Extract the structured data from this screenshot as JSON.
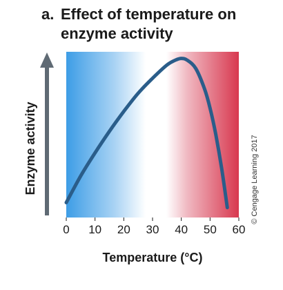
{
  "figure": {
    "label": "a.",
    "title_line1": "Effect of temperature on",
    "title_line2": "enzyme activity",
    "credit": "© Cengage Learning 2017"
  },
  "colors": {
    "cold": "#3d9de6",
    "neutral": "#ffffff",
    "hot": "#d8384f",
    "curve": "#2a5d8a",
    "arrow": "#5f6a74"
  },
  "chart_data": {
    "type": "line",
    "title": "Effect of temperature on enzyme activity",
    "xlabel": "Temperature (°C)",
    "ylabel": "Enzyme activity",
    "xlim": [
      0,
      60
    ],
    "ylim": [
      0,
      1
    ],
    "x_ticks": [
      0,
      10,
      20,
      30,
      40,
      50,
      60
    ],
    "y_ticks": [],
    "grid": false,
    "legend": "none",
    "y_axis_arrow": "up",
    "background": "temperature gradient: blue (cold) to white to red (hot)",
    "series": [
      {
        "x": [
          0,
          5,
          10,
          15,
          20,
          25,
          30,
          35,
          38,
          40,
          42,
          45,
          48,
          50,
          52,
          54,
          56
        ],
        "values": [
          0.09,
          0.25,
          0.39,
          0.52,
          0.64,
          0.75,
          0.84,
          0.92,
          0.95,
          0.96,
          0.95,
          0.9,
          0.78,
          0.66,
          0.5,
          0.3,
          0.06
        ]
      }
    ]
  }
}
